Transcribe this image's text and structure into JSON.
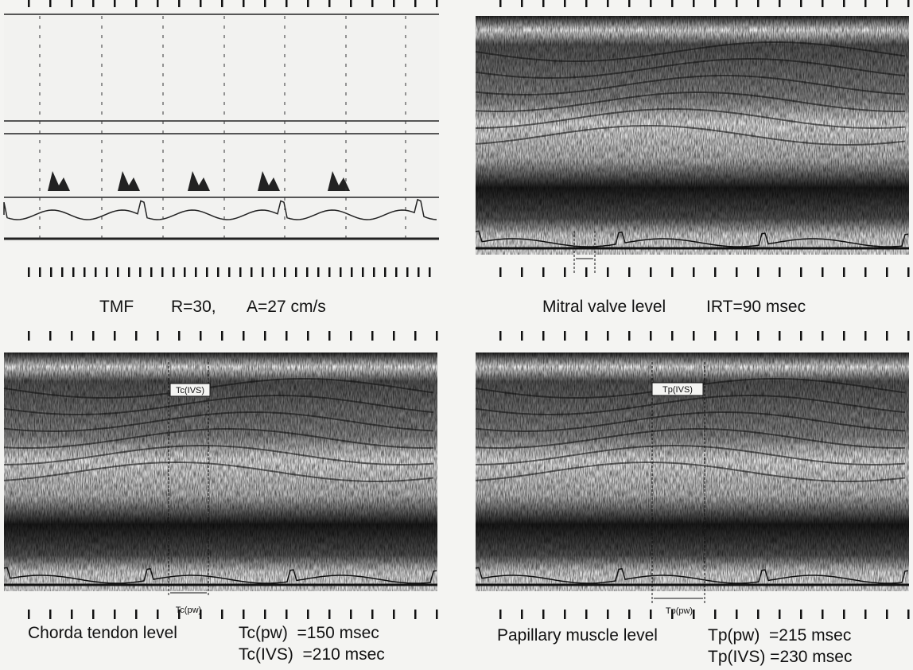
{
  "panels": [
    {
      "caption": [
        "TMF",
        "R=30,",
        "A=27 cm/s"
      ]
    },
    {
      "caption": [
        "Mitral valve level",
        "IRT=90 msec"
      ]
    },
    {
      "caption": [
        "Chorda tendon level"
      ],
      "measurements": [
        "Tc(pw)  =150 msec",
        "Tc(IVS)  =210 msec"
      ],
      "markers": [
        "Tc(IVS)",
        "Tc(pw)"
      ]
    },
    {
      "caption": [
        "Papillary muscle level"
      ],
      "measurements": [
        "Tp(pw)  =215 msec",
        "Tp(IVS) =230 msec"
      ],
      "markers": [
        "Tp(IVS)",
        "Tp(pw)"
      ]
    }
  ]
}
